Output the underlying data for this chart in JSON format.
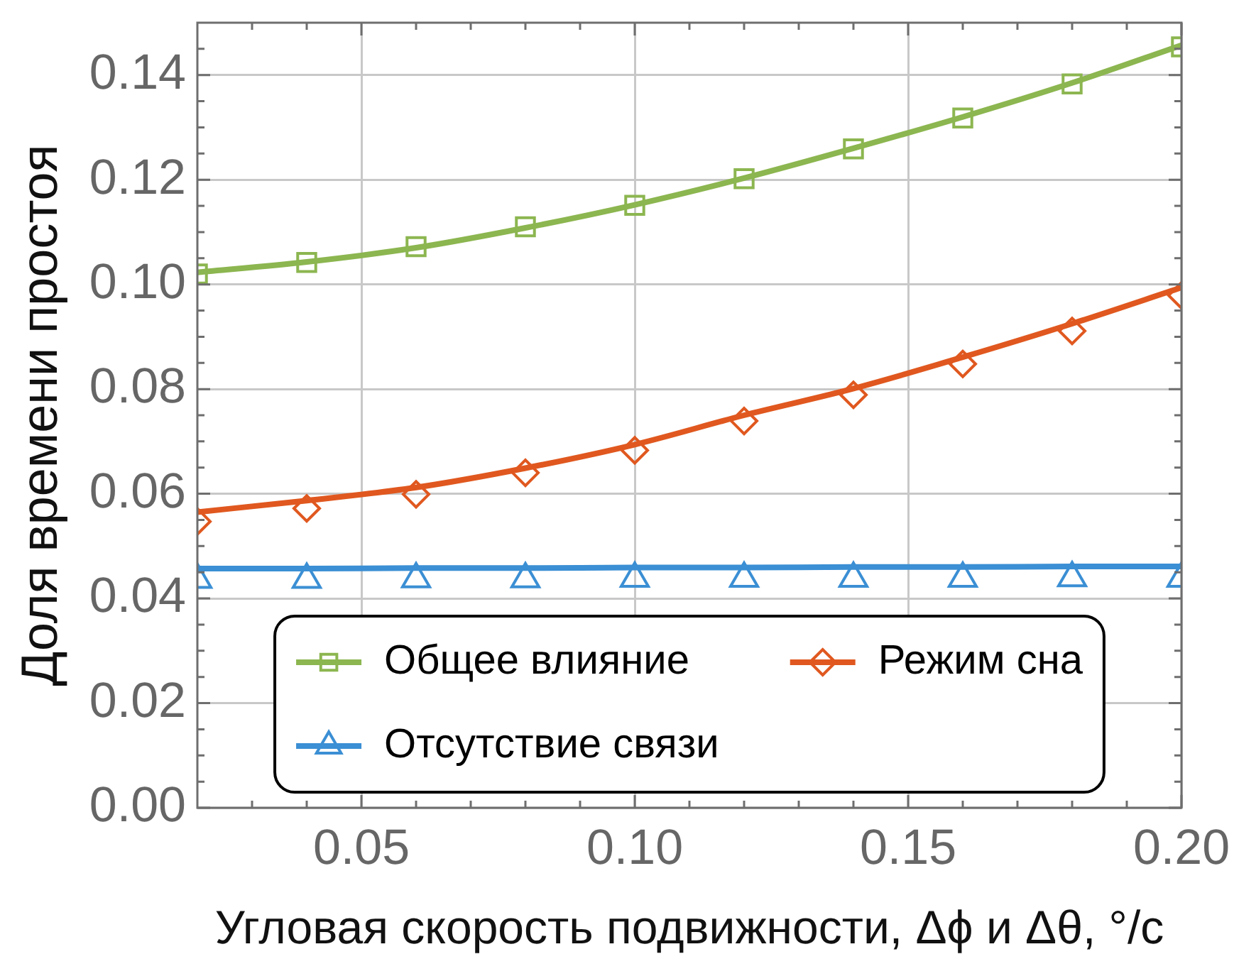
{
  "chart_data": {
    "type": "line",
    "xlabel": "Угловая скорость подвижности, Δϕ и Δθ, °/с",
    "ylabel": "Доля времени простоя",
    "xlim": [
      0.02,
      0.2
    ],
    "ylim": [
      0,
      0.15
    ],
    "xticks": [
      {
        "value": 0.03,
        "label": null
      },
      {
        "value": 0.04,
        "label": null
      },
      0.05,
      {
        "value": 0.06,
        "label": null
      },
      {
        "value": 0.07,
        "label": null
      },
      {
        "value": 0.08,
        "label": null
      },
      {
        "value": 0.09,
        "label": null
      },
      {
        "value": 0.1,
        "label": "0.10"
      },
      {
        "value": 0.11,
        "label": null
      },
      {
        "value": 0.12,
        "label": null
      },
      {
        "value": 0.13,
        "label": null
      },
      {
        "value": 0.14,
        "label": null
      },
      0.15,
      {
        "value": 0.16,
        "label": null
      },
      {
        "value": 0.17,
        "label": null
      },
      {
        "value": 0.18,
        "label": null
      },
      {
        "value": 0.19,
        "label": null
      },
      {
        "value": 0.2,
        "label": "0.20"
      }
    ],
    "yticks": [
      {
        "value": 0,
        "label": "0.00"
      },
      {
        "value": 0.005,
        "label": null
      },
      {
        "value": 0.01,
        "label": null
      },
      {
        "value": 0.015,
        "label": null
      },
      0.02,
      {
        "value": 0.025,
        "label": null
      },
      {
        "value": 0.03,
        "label": null
      },
      {
        "value": 0.035,
        "label": null
      },
      0.04,
      {
        "value": 0.045,
        "label": null
      },
      {
        "value": 0.05,
        "label": null
      },
      {
        "value": 0.055,
        "label": null
      },
      0.06,
      {
        "value": 0.065,
        "label": null
      },
      {
        "value": 0.07,
        "label": null
      },
      {
        "value": 0.075,
        "label": null
      },
      0.08,
      {
        "value": 0.085,
        "label": null
      },
      {
        "value": 0.09,
        "label": null
      },
      {
        "value": 0.095,
        "label": null
      },
      {
        "value": 0.1,
        "label": "0.10"
      },
      {
        "value": 0.105,
        "label": null
      },
      {
        "value": 0.11,
        "label": null
      },
      {
        "value": 0.115,
        "label": null
      },
      0.12,
      {
        "value": 0.125,
        "label": null
      },
      {
        "value": 0.13,
        "label": null
      },
      {
        "value": 0.135,
        "label": null
      },
      0.14,
      {
        "value": 0.145,
        "label": null
      }
    ],
    "grid": true,
    "legend": "bottom",
    "x": [
      0.02,
      0.04,
      0.06,
      0.08,
      0.1,
      0.12,
      0.14,
      0.16,
      0.18,
      0.2
    ],
    "series": [
      {
        "type": "line",
        "color": "#8cb650",
        "values": [
          0.1023,
          0.1043,
          0.107,
          0.1108,
          0.1152,
          0.1203,
          0.126,
          0.132,
          0.1385,
          0.1457
        ]
      },
      {
        "type": "scatter",
        "name": "Общее влияние",
        "color": "#8cb650",
        "marker": "square",
        "values": [
          0.102,
          0.1042,
          0.1072,
          0.111,
          0.1151,
          0.1202,
          0.1259,
          0.1318,
          0.1383,
          0.1454
        ]
      },
      {
        "type": "line",
        "color": "#e0581f",
        "values": [
          0.0565,
          0.0587,
          0.0612,
          0.0649,
          0.0694,
          0.075,
          0.0801,
          0.0861,
          0.0925,
          0.0994
        ]
      },
      {
        "type": "scatter",
        "name": "Режим сна",
        "color": "#e0581f",
        "marker": "diamond",
        "values": [
          0.0547,
          0.0572,
          0.0599,
          0.064,
          0.0683,
          0.0739,
          0.0789,
          0.0848,
          0.0911,
          0.0979
        ]
      },
      {
        "type": "line",
        "color": "#3b8fd4",
        "values": [
          0.0457,
          0.0457,
          0.0458,
          0.0458,
          0.0459,
          0.0459,
          0.046,
          0.046,
          0.0461,
          0.0461
        ]
      },
      {
        "type": "scatter",
        "name": "Отсутствие связи",
        "color": "#3b8fd4",
        "marker": "triangle",
        "values": [
          0.0436,
          0.0436,
          0.0437,
          0.0437,
          0.0438,
          0.0438,
          0.0438,
          0.0438,
          0.0439,
          0.0438
        ]
      }
    ]
  }
}
